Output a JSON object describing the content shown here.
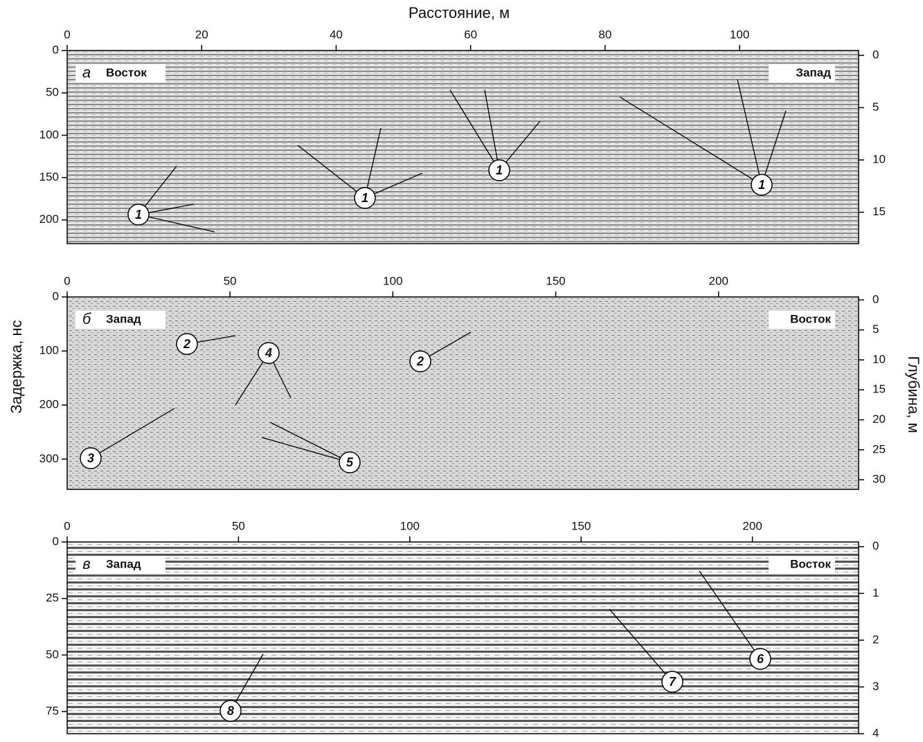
{
  "figure": {
    "x_axis_label": "Расстояние, м",
    "y_axis_label": "Задержка, нс",
    "y2_axis_label": "Глубина, м",
    "panels": [
      {
        "letter": "а",
        "left_label": "Восток",
        "right_label": "Запад",
        "xlim": [
          0,
          117.7
        ],
        "xticks": [
          0,
          20,
          40,
          60,
          80,
          100
        ],
        "ylim": [
          0,
          228
        ],
        "yticks": [
          0,
          50,
          100,
          150,
          200
        ],
        "y2lim": [
          -0.46,
          18
        ],
        "y2ticks": [
          0,
          5,
          10,
          15
        ],
        "annotations": [
          "1",
          "1",
          "1",
          "1"
        ]
      },
      {
        "letter": "б",
        "left_label": "Запад",
        "right_label": "Восток",
        "xlim": [
          0,
          243
        ],
        "xticks": [
          0,
          50,
          100,
          150,
          200
        ],
        "ylim": [
          0,
          356
        ],
        "yticks": [
          0,
          100,
          200,
          300
        ],
        "y2lim": [
          -0.5,
          31.6
        ],
        "y2ticks": [
          0,
          5,
          10,
          15,
          20,
          25,
          30
        ],
        "annotations": [
          "2",
          "2",
          "3",
          "4",
          "5"
        ]
      },
      {
        "letter": "в",
        "left_label": "Запад",
        "right_label": "Восток",
        "xlim": [
          0,
          231
        ],
        "xticks": [
          0,
          50,
          100,
          150,
          200
        ],
        "ylim": [
          0,
          84.8
        ],
        "yticks": [
          0,
          25,
          50,
          75
        ],
        "y2lim": [
          -0.1,
          4
        ],
        "y2ticks": [
          0,
          1,
          2,
          3,
          4
        ],
        "annotations": [
          "8",
          "7",
          "6"
        ]
      }
    ]
  }
}
